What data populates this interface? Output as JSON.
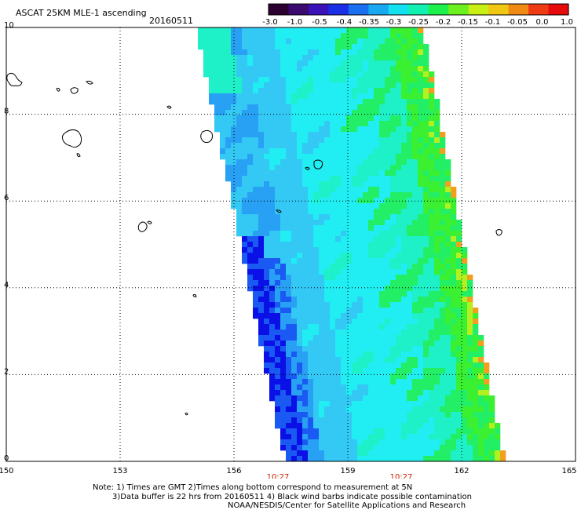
{
  "header": {
    "title": "ASCAT 25KM MLE-1 ascending",
    "date": "20160511"
  },
  "colorbar": {
    "tick_labels": [
      "-3.0",
      "-1.0",
      "-0.5",
      "-0.4",
      "-0.35",
      "-0.3",
      "-0.25",
      "-0.2",
      "-0.15",
      "-0.1",
      "-0.05",
      "0.0",
      "1.0"
    ],
    "colors": [
      "#2b0030",
      "#3a0a6e",
      "#3b12b8",
      "#1a2ee6",
      "#1a6ef0",
      "#18a8f2",
      "#14e0f0",
      "#12f0b0",
      "#1cf04a",
      "#6cf01e",
      "#c8f014",
      "#f0c814",
      "#f08a14",
      "#f03a14",
      "#e60a0a"
    ]
  },
  "map": {
    "lat_labels": [
      "10",
      "8",
      "6",
      "4",
      "2",
      "0"
    ],
    "lon_labels": [
      "150",
      "153",
      "156",
      "159",
      "162",
      "165"
    ],
    "time_labels": [
      "10:27",
      "10:27"
    ],
    "time_color": "#cc2200",
    "swath_palette": {
      "deep_blue": "#0a10e6",
      "blue": "#1a5af2",
      "sky": "#28a0f4",
      "light_blue": "#34c8f4",
      "cyan": "#20eef2",
      "aqua": "#1ef0c8",
      "green": "#22ee66",
      "lime": "#3af030",
      "yellow_green": "#b4f020",
      "orange": "#f0a01e"
    }
  },
  "footer": {
    "line1": "Note: 1) Times are GMT 2)Times along bottom correspond to measurement at 5N",
    "line2": "3)Data buffer is 22 hrs from 20160511 4) Black wind barbs indicate possible contamination",
    "line3": "NOAA/NESDIS/Center for Satellite Applications and Research"
  }
}
